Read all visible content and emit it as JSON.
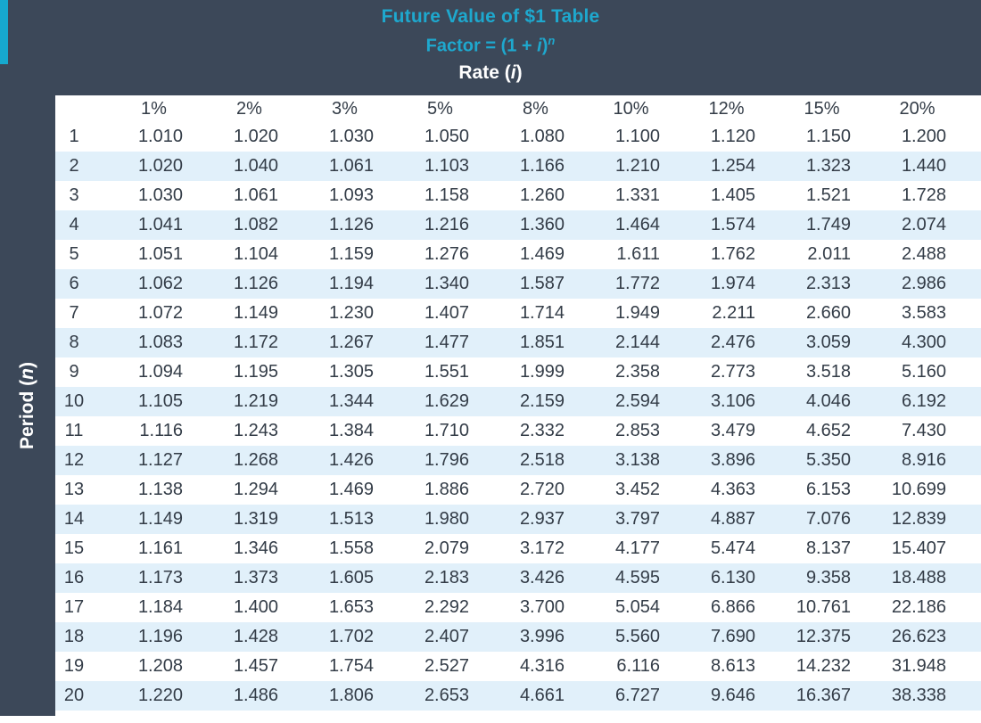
{
  "header": {
    "title": "Future Value of $1 Table",
    "formula": {
      "prefix": "Factor = (1 + ",
      "var": "i",
      "close": ")",
      "exponent": "n"
    },
    "rate": {
      "prefix": "Rate (",
      "var": "i",
      "close": ")"
    }
  },
  "sidebar": {
    "period": {
      "prefix": "Period (",
      "var": "n",
      "close": ")"
    }
  },
  "table": {
    "columns": [
      "1%",
      "2%",
      "3%",
      "5%",
      "8%",
      "10%",
      "12%",
      "15%",
      "20%"
    ],
    "rows": [
      {
        "period": "1",
        "values": [
          "1.010",
          "1.020",
          "1.030",
          "1.050",
          "1.080",
          "1.100",
          "1.120",
          "1.150",
          "1.200"
        ]
      },
      {
        "period": "2",
        "values": [
          "1.020",
          "1.040",
          "1.061",
          "1.103",
          "1.166",
          "1.210",
          "1.254",
          "1.323",
          "1.440"
        ]
      },
      {
        "period": "3",
        "values": [
          "1.030",
          "1.061",
          "1.093",
          "1.158",
          "1.260",
          "1.331",
          "1.405",
          "1.521",
          "1.728"
        ]
      },
      {
        "period": "4",
        "values": [
          "1.041",
          "1.082",
          "1.126",
          "1.216",
          "1.360",
          "1.464",
          "1.574",
          "1.749",
          "2.074"
        ]
      },
      {
        "period": "5",
        "values": [
          "1.051",
          "1.104",
          "1.159",
          "1.276",
          "1.469",
          "1.611",
          "1.762",
          "2.011",
          "2.488"
        ]
      },
      {
        "period": "6",
        "values": [
          "1.062",
          "1.126",
          "1.194",
          "1.340",
          "1.587",
          "1.772",
          "1.974",
          "2.313",
          "2.986"
        ]
      },
      {
        "period": "7",
        "values": [
          "1.072",
          "1.149",
          "1.230",
          "1.407",
          "1.714",
          "1.949",
          "2.211",
          "2.660",
          "3.583"
        ]
      },
      {
        "period": "8",
        "values": [
          "1.083",
          "1.172",
          "1.267",
          "1.477",
          "1.851",
          "2.144",
          "2.476",
          "3.059",
          "4.300"
        ]
      },
      {
        "period": "9",
        "values": [
          "1.094",
          "1.195",
          "1.305",
          "1.551",
          "1.999",
          "2.358",
          "2.773",
          "3.518",
          "5.160"
        ]
      },
      {
        "period": "10",
        "values": [
          "1.105",
          "1.219",
          "1.344",
          "1.629",
          "2.159",
          "2.594",
          "3.106",
          "4.046",
          "6.192"
        ]
      },
      {
        "period": "11",
        "values": [
          "1.116",
          "1.243",
          "1.384",
          "1.710",
          "2.332",
          "2.853",
          "3.479",
          "4.652",
          "7.430"
        ]
      },
      {
        "period": "12",
        "values": [
          "1.127",
          "1.268",
          "1.426",
          "1.796",
          "2.518",
          "3.138",
          "3.896",
          "5.350",
          "8.916"
        ]
      },
      {
        "period": "13",
        "values": [
          "1.138",
          "1.294",
          "1.469",
          "1.886",
          "2.720",
          "3.452",
          "4.363",
          "6.153",
          "10.699"
        ]
      },
      {
        "period": "14",
        "values": [
          "1.149",
          "1.319",
          "1.513",
          "1.980",
          "2.937",
          "3.797",
          "4.887",
          "7.076",
          "12.839"
        ]
      },
      {
        "period": "15",
        "values": [
          "1.161",
          "1.346",
          "1.558",
          "2.079",
          "3.172",
          "4.177",
          "5.474",
          "8.137",
          "15.407"
        ]
      },
      {
        "period": "16",
        "values": [
          "1.173",
          "1.373",
          "1.605",
          "2.183",
          "3.426",
          "4.595",
          "6.130",
          "9.358",
          "18.488"
        ]
      },
      {
        "period": "17",
        "values": [
          "1.184",
          "1.400",
          "1.653",
          "2.292",
          "3.700",
          "5.054",
          "6.866",
          "10.761",
          "22.186"
        ]
      },
      {
        "period": "18",
        "values": [
          "1.196",
          "1.428",
          "1.702",
          "2.407",
          "3.996",
          "5.560",
          "7.690",
          "12.375",
          "26.623"
        ]
      },
      {
        "period": "19",
        "values": [
          "1.208",
          "1.457",
          "1.754",
          "2.527",
          "4.316",
          "6.116",
          "8.613",
          "14.232",
          "31.948"
        ]
      },
      {
        "period": "20",
        "values": [
          "1.220",
          "1.486",
          "1.806",
          "2.653",
          "4.661",
          "6.727",
          "9.646",
          "16.367",
          "38.338"
        ]
      }
    ]
  },
  "colors": {
    "background_dark": "#3C4859",
    "accent_cyan": "#16A9CE",
    "title_cyan": "#1EA8CE",
    "row_alt_blue": "#E1F0FA",
    "text_dark": "#333C47",
    "text_light": "#FFFFFF"
  }
}
